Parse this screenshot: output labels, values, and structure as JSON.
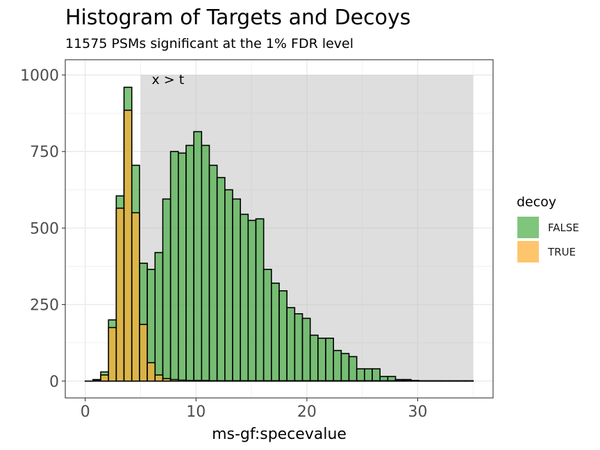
{
  "chart_data": {
    "type": "bar",
    "subtype": "overlapping histogram",
    "title": "Histogram of Targets and Decoys",
    "subtitle": "11575 PSMs significant at the 1% FDR level",
    "xlabel": "ms-gf:specevalue",
    "ylabel": "",
    "xlim": [
      -1.8,
      36.8
    ],
    "ylim": [
      -55,
      1050
    ],
    "x_ticks": [
      0,
      10,
      20,
      30
    ],
    "x_tick_labels": [
      "0",
      "10",
      "20",
      "30"
    ],
    "y_ticks": [
      0,
      250,
      500,
      750,
      1000
    ],
    "y_tick_labels": [
      "0",
      "250",
      "500",
      "750",
      "1000"
    ],
    "grid": true,
    "bin_width": 0.7,
    "bin_centers": [
      0.35,
      1.05,
      1.75,
      2.45,
      3.15,
      3.85,
      4.55,
      5.25,
      5.95,
      6.65,
      7.35,
      8.05,
      8.75,
      9.45,
      10.15,
      10.85,
      11.55,
      12.25,
      12.95,
      13.65,
      14.35,
      15.05,
      15.75,
      16.45,
      17.15,
      17.85,
      18.55,
      19.25,
      19.95,
      20.65,
      21.35,
      22.05,
      22.75,
      23.45,
      24.15,
      24.85,
      25.55,
      26.25,
      26.95,
      27.65,
      28.35,
      29.05,
      29.75,
      30.45,
      31.15,
      31.85,
      32.55,
      33.25,
      33.95,
      34.65
    ],
    "series": [
      {
        "name": "FALSE",
        "color": "#4daf4a",
        "values": [
          0,
          5,
          30,
          200,
          605,
          960,
          705,
          385,
          365,
          420,
          595,
          750,
          745,
          770,
          815,
          770,
          705,
          665,
          625,
          595,
          545,
          525,
          530,
          365,
          320,
          295,
          240,
          220,
          205,
          150,
          140,
          140,
          100,
          90,
          80,
          40,
          40,
          40,
          15,
          15,
          5,
          5,
          2,
          1,
          1,
          1,
          0,
          0,
          0,
          0
        ]
      },
      {
        "name": "TRUE",
        "color": "#ffae34",
        "values": [
          0,
          3,
          20,
          175,
          565,
          885,
          550,
          185,
          60,
          20,
          8,
          5,
          3,
          2,
          2,
          2,
          1,
          1,
          1,
          1,
          1,
          1,
          1,
          1,
          1,
          1,
          1,
          1,
          1,
          1,
          1,
          1,
          1,
          1,
          1,
          1,
          1,
          1,
          1,
          1,
          1,
          1,
          1,
          1,
          1,
          1,
          1,
          1,
          1,
          1
        ]
      }
    ],
    "shaded_region": {
      "x_start": 5,
      "x_end": 35,
      "y_start": 0,
      "y_end": 1000,
      "label": "x > t",
      "color": "#bbbbbb"
    },
    "legend": {
      "title": "decoy",
      "placement": "right",
      "entries": [
        "FALSE",
        "TRUE"
      ]
    }
  }
}
